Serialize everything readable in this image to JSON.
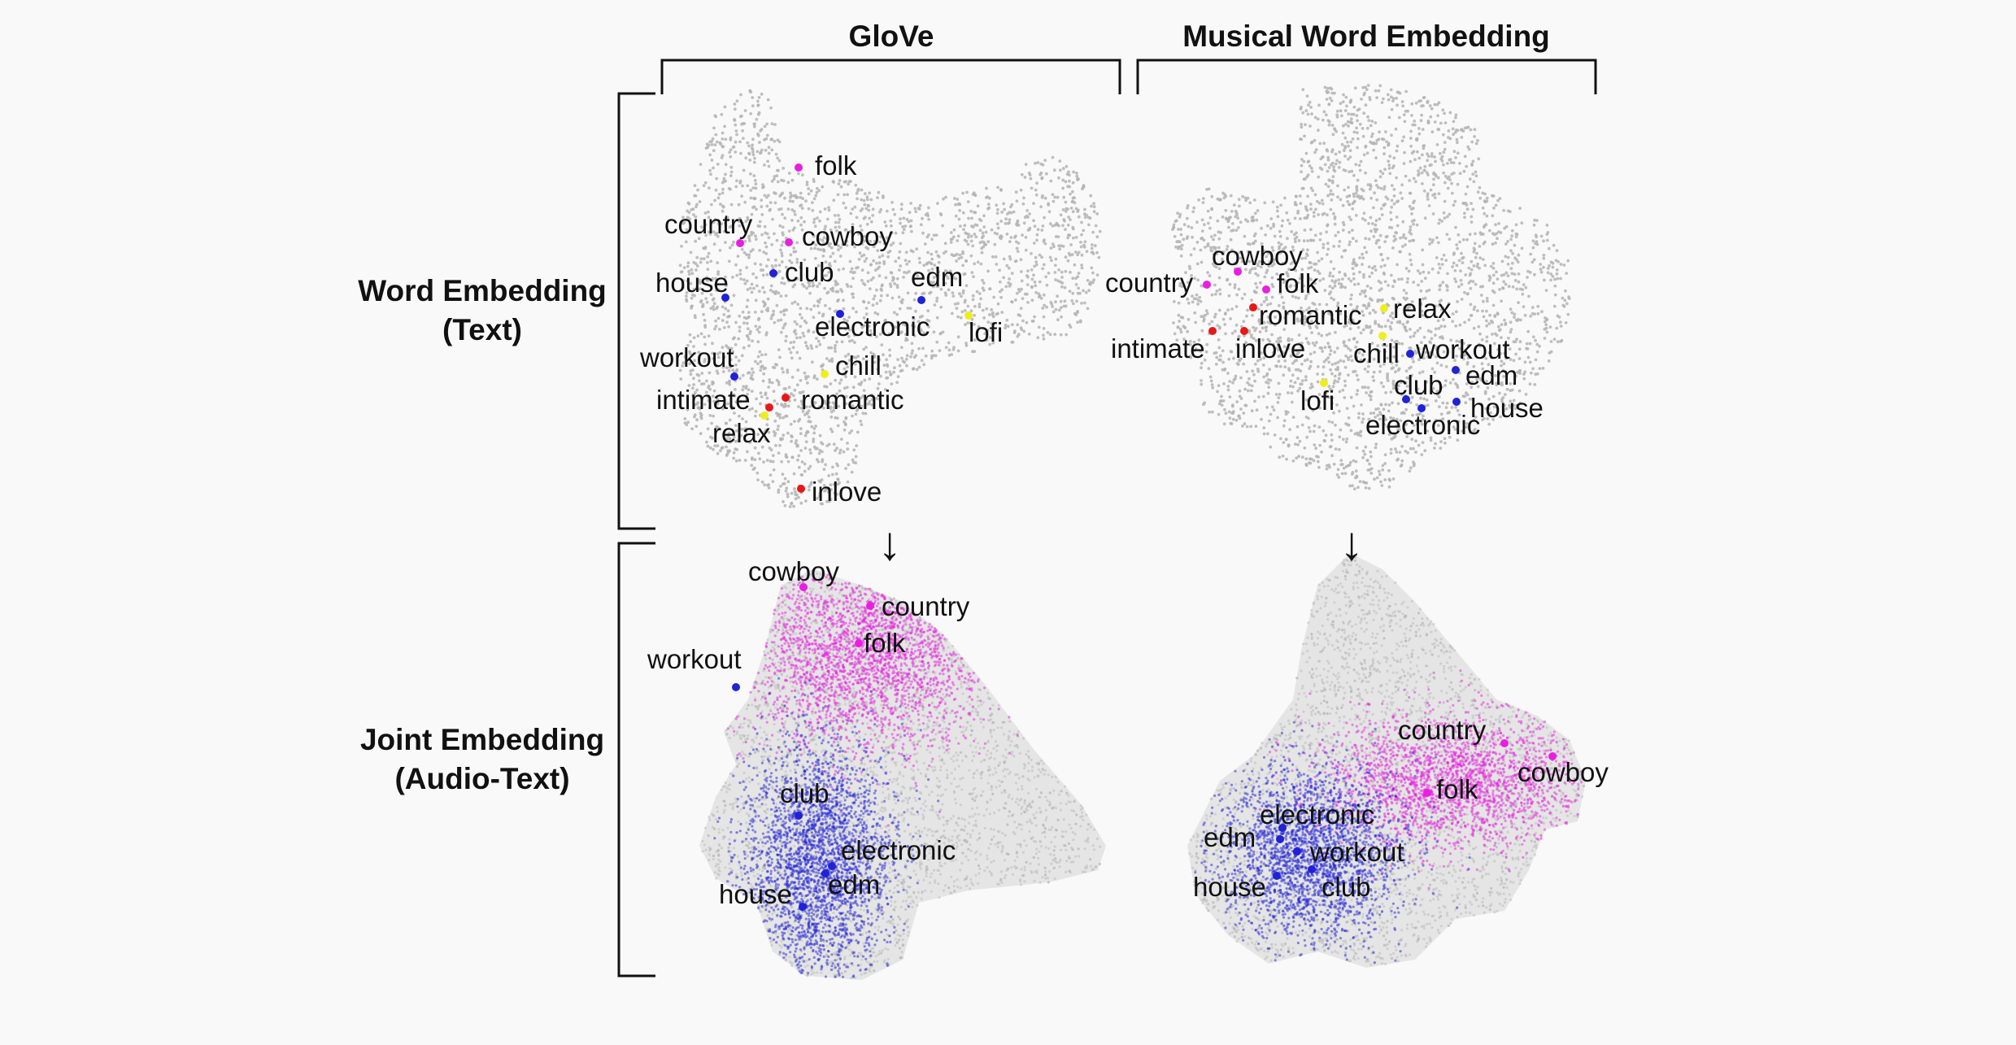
{
  "headers": {
    "glove": "GloVe",
    "musical": "Musical Word Embedding"
  },
  "rows": {
    "word": {
      "line1": "Word Embedding",
      "line2": "(Text)"
    },
    "joint": {
      "line1": "Joint Embedding",
      "line2": "(Audio-Text)"
    }
  },
  "arrows": {
    "glove": "↓",
    "musical": "↓"
  },
  "colors": {
    "background": "#f9f9f9",
    "scatter_gray": "#b4b4b4",
    "magenta_category": "#e81fe0",
    "blue_category": "#1f22d6",
    "red_category": "#e81818",
    "yellow_category": "#eeee1e",
    "bracket": "#111111"
  },
  "panels": {
    "glove_text": [
      {
        "label": "folk",
        "category": "magenta"
      },
      {
        "label": "country",
        "category": "magenta"
      },
      {
        "label": "cowboy",
        "category": "magenta"
      },
      {
        "label": "house",
        "category": "blue"
      },
      {
        "label": "club",
        "category": "blue"
      },
      {
        "label": "edm",
        "category": "blue"
      },
      {
        "label": "electronic",
        "category": "blue"
      },
      {
        "label": "lofi",
        "category": "yellow"
      },
      {
        "label": "workout",
        "category": "blue"
      },
      {
        "label": "chill",
        "category": "yellow"
      },
      {
        "label": "intimate",
        "category": "red"
      },
      {
        "label": "romantic",
        "category": "red"
      },
      {
        "label": "relax",
        "category": "yellow"
      },
      {
        "label": "inlove",
        "category": "red"
      }
    ],
    "musical_text": [
      {
        "label": "cowboy",
        "category": "magenta"
      },
      {
        "label": "country",
        "category": "magenta"
      },
      {
        "label": "folk",
        "category": "magenta"
      },
      {
        "label": "romantic",
        "category": "red"
      },
      {
        "label": "relax",
        "category": "yellow"
      },
      {
        "label": "intimate",
        "category": "red"
      },
      {
        "label": "inlove",
        "category": "red"
      },
      {
        "label": "chill",
        "category": "yellow"
      },
      {
        "label": "workout",
        "category": "blue"
      },
      {
        "label": "edm",
        "category": "blue"
      },
      {
        "label": "club",
        "category": "blue"
      },
      {
        "label": "lofi",
        "category": "yellow"
      },
      {
        "label": "house",
        "category": "blue"
      },
      {
        "label": "electronic",
        "category": "blue"
      }
    ],
    "glove_joint": [
      {
        "label": "cowboy",
        "category": "magenta"
      },
      {
        "label": "country",
        "category": "magenta"
      },
      {
        "label": "folk",
        "category": "magenta"
      },
      {
        "label": "workout",
        "category": "blue"
      },
      {
        "label": "club",
        "category": "blue"
      },
      {
        "label": "electronic",
        "category": "blue"
      },
      {
        "label": "edm",
        "category": "blue"
      },
      {
        "label": "house",
        "category": "blue"
      }
    ],
    "musical_joint": [
      {
        "label": "country",
        "category": "magenta"
      },
      {
        "label": "cowboy",
        "category": "magenta"
      },
      {
        "label": "folk",
        "category": "magenta"
      },
      {
        "label": "electronic",
        "category": "blue"
      },
      {
        "label": "edm",
        "category": "blue"
      },
      {
        "label": "workout",
        "category": "blue"
      },
      {
        "label": "house",
        "category": "blue"
      },
      {
        "label": "club",
        "category": "blue"
      }
    ]
  }
}
